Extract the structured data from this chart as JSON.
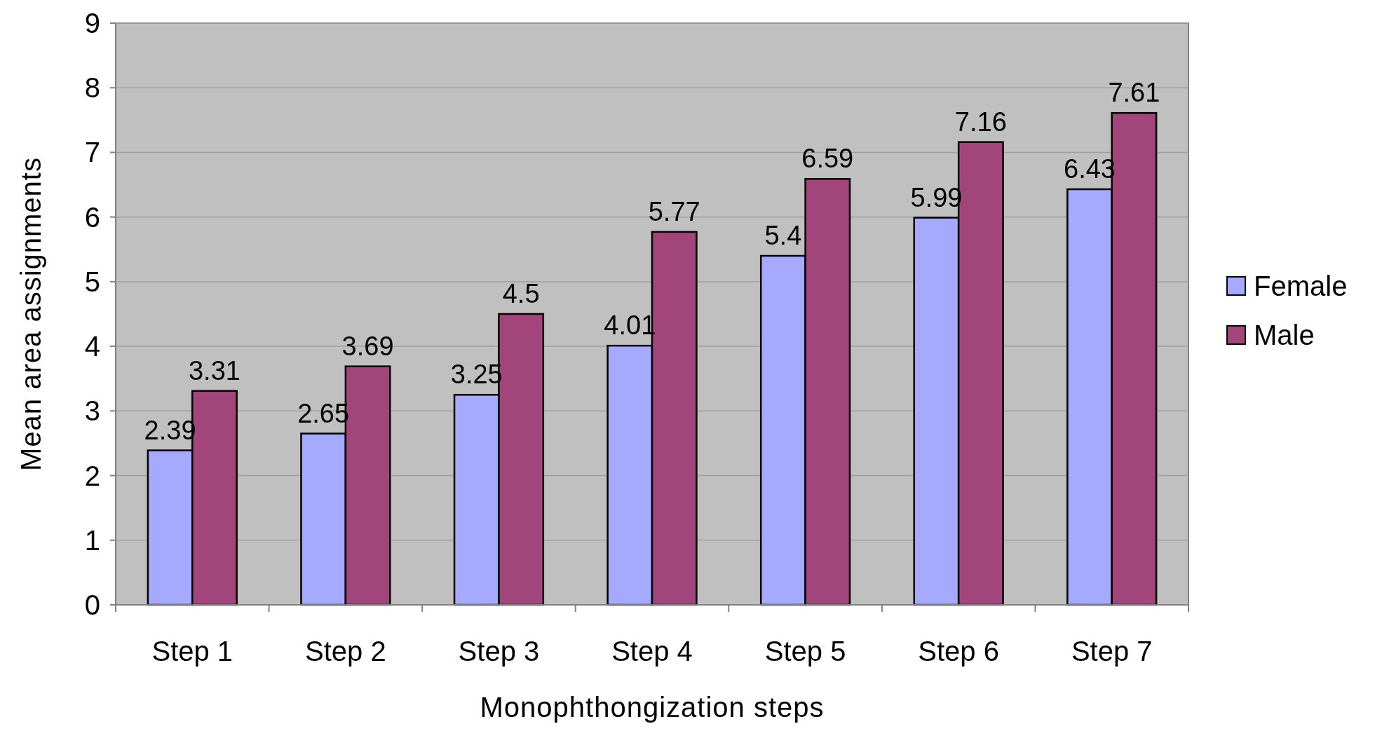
{
  "chart_data": {
    "type": "bar",
    "xlabel": "Monophthongization steps",
    "ylabel": "Mean area assignments",
    "categories": [
      "Step 1",
      "Step 2",
      "Step 3",
      "Step 4",
      "Step 5",
      "Step 6",
      "Step 7"
    ],
    "series": [
      {
        "name": "Female",
        "color": "#a6aaff",
        "values": [
          2.39,
          2.65,
          3.25,
          4.01,
          5.4,
          5.99,
          6.43
        ]
      },
      {
        "name": "Male",
        "color": "#a2457a",
        "values": [
          3.31,
          3.69,
          4.5,
          5.77,
          6.59,
          7.16,
          7.61
        ]
      }
    ],
    "ylim": [
      0,
      9
    ],
    "yticks": [
      0,
      1,
      2,
      3,
      4,
      5,
      6,
      7,
      8,
      9
    ],
    "grid": "y",
    "legend": "right",
    "data_labels": true
  }
}
